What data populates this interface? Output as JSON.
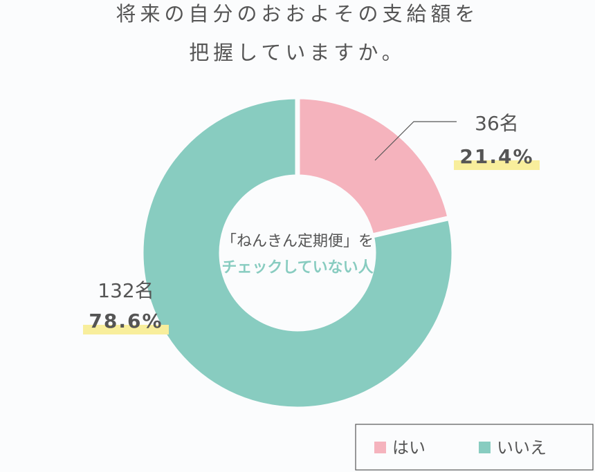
{
  "chart_data": {
    "type": "donut",
    "title": [
      "将来の自分のおおよその支給額を",
      "把握していますか。"
    ],
    "center_text": [
      "「ねんきん定期便」を",
      "チェックしていない人"
    ],
    "categories": [
      "はい",
      "いいえ"
    ],
    "values": [
      21.4,
      78.6
    ],
    "value_labels": [
      "21.4%",
      "78.6%"
    ],
    "counts": [
      36,
      132
    ],
    "count_labels": [
      "36名",
      "132名"
    ],
    "colors": [
      "#f5b3bd",
      "#88ccc0"
    ],
    "legend": "bottom-right"
  }
}
